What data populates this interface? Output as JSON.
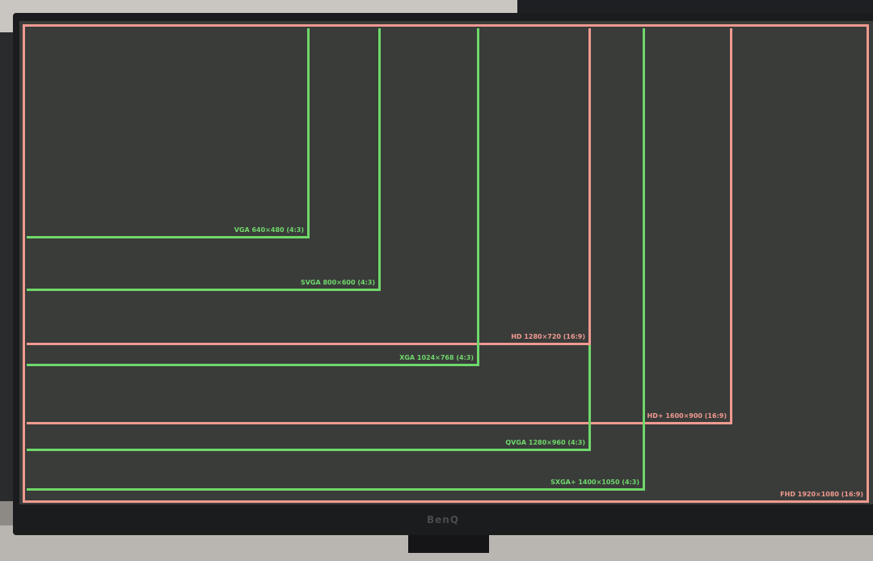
{
  "brand": "BenQ",
  "colors": {
    "green": "#6fd86a",
    "pink": "#f09a90",
    "screen": "#3a3c3a"
  },
  "resolutions": [
    {
      "label": "VGA 640×480 (4:3)",
      "color": "green"
    },
    {
      "label": "SVGA 800×600 (4:3)",
      "color": "green"
    },
    {
      "label": "XGA 1024×768 (4:3)",
      "color": "green"
    },
    {
      "label": "HD 1280×720 (16:9)",
      "color": "pink"
    },
    {
      "label": "QVGA 1280×960 (4:3)",
      "color": "green"
    },
    {
      "label": "HD+ 1600×900 (16:9)",
      "color": "pink"
    },
    {
      "label": "SXGA+ 1400×1050 (4:3)",
      "color": "green"
    },
    {
      "label": "FHD 1920×1080 (16:9)",
      "color": "pink"
    }
  ]
}
